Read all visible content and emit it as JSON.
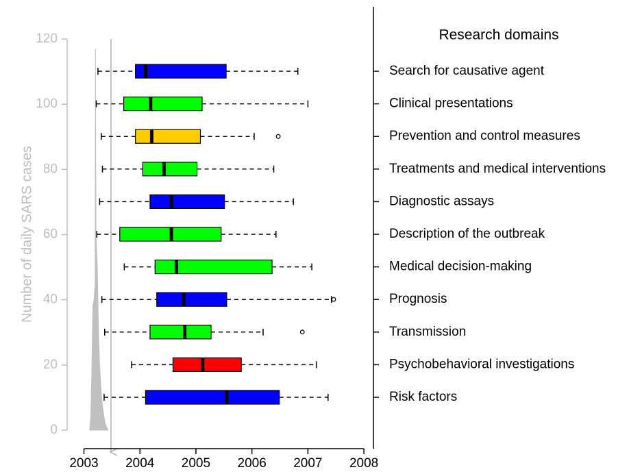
{
  "chart_data": [
    {
      "type": "area",
      "y_label": "Number of daily SARS cases",
      "color": "#c0c0c0",
      "x": [
        2003.1,
        2003.12,
        2003.14,
        2003.16,
        2003.18,
        2003.2,
        2003.205,
        2003.215,
        2003.24,
        2003.26,
        2003.28,
        2003.3,
        2003.32,
        2003.35,
        2003.38,
        2003.43
      ],
      "values": [
        0,
        3,
        18,
        38,
        40,
        45,
        117,
        60,
        49,
        30,
        20,
        14,
        9,
        5,
        2,
        0
      ],
      "xlim": [
        2002.7,
        2008.17
      ],
      "xticks": [
        2003,
        2004,
        2005,
        2006,
        2007,
        2008
      ],
      "ylim": [
        0,
        120
      ],
      "yticks": [
        0,
        20,
        40,
        60,
        80,
        100,
        120
      ]
    },
    {
      "type": "boxplot",
      "title": "Research domains",
      "categories": [
        "Search for causative agent",
        "Clinical presentations",
        "Prevention and control measures",
        "Treatments and medical interventions",
        "Diagnostic assays",
        "Description of the outbreak",
        "Medical decision-making",
        "Prognosis",
        "Transmission",
        "Psychobehavioral investigations",
        "Risk factors"
      ],
      "colors": [
        "#0000ff",
        "#00ff00",
        "#ffcc00",
        "#00ff00",
        "#0000ff",
        "#00ff00",
        "#00ff00",
        "#0000ff",
        "#00ff00",
        "#ff0000",
        "#0000ff"
      ],
      "whisker_low": [
        2003.25,
        2003.22,
        2003.31,
        2003.33,
        2003.28,
        2003.23,
        2003.72,
        2003.32,
        2003.37,
        2003.85,
        2003.36
      ],
      "q1": [
        2003.92,
        2003.71,
        2003.92,
        2004.05,
        2004.18,
        2003.64,
        2004.27,
        2004.3,
        2004.18,
        2004.59,
        2004.1
      ],
      "median": [
        2004.1,
        2004.19,
        2004.21,
        2004.43,
        2004.56,
        2004.56,
        2004.65,
        2004.78,
        2004.8,
        2005.12,
        2005.55
      ],
      "q3": [
        2005.54,
        2005.11,
        2005.08,
        2005.02,
        2005.51,
        2005.45,
        2006.36,
        2005.55,
        2005.27,
        2005.81,
        2006.49
      ],
      "whisker_high": [
        2006.82,
        2007.0,
        2006.04,
        2006.39,
        2006.74,
        2006.43,
        2007.07,
        2007.42,
        2006.2,
        2007.15,
        2007.36
      ],
      "outliers": [
        [],
        [],
        [
          2006.47
        ],
        [],
        [],
        [],
        [],
        [
          2007.46
        ],
        [
          2006.9
        ],
        [],
        []
      ]
    }
  ]
}
